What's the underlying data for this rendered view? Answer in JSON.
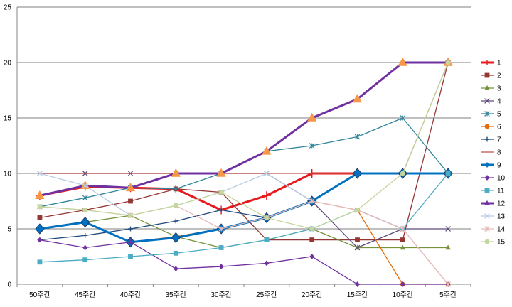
{
  "chart_data": {
    "type": "line",
    "title": "",
    "xlabel": "",
    "ylabel": "",
    "ylim": [
      0,
      25
    ],
    "yticks": [
      0,
      5,
      10,
      15,
      20,
      25
    ],
    "grid": "horizontal",
    "legend_position": "right",
    "categories": [
      "50주간",
      "45주간",
      "40주간",
      "35주간",
      "30주간",
      "25주간",
      "20주간",
      "15주간",
      "10주간",
      "5주간"
    ],
    "series": [
      {
        "name": "1",
        "color": "#e8191c",
        "marker": "plus",
        "width": 3,
        "values": [
          8,
          8.8,
          8.7,
          8.6,
          6.7,
          8,
          10,
          10,
          10,
          10
        ]
      },
      {
        "name": "2",
        "color": "#943634",
        "marker": "square",
        "width": 1.3,
        "values": [
          6,
          6.7,
          7.5,
          8.6,
          8.3,
          4,
          4,
          4,
          4,
          20
        ]
      },
      {
        "name": "3",
        "color": "#76923c",
        "marker": "triangle",
        "width": 1.3,
        "values": [
          5,
          5.6,
          6.2,
          4.3,
          3.3,
          4,
          5,
          3.3,
          3.3,
          3.3
        ]
      },
      {
        "name": "4",
        "color": "#5f497a",
        "marker": "x",
        "width": 1.3,
        "values": [
          10,
          10,
          10,
          10,
          10,
          10,
          7.5,
          3.3,
          5,
          5
        ]
      },
      {
        "name": "5",
        "color": "#31859c",
        "marker": "asterisk",
        "width": 1.3,
        "values": [
          7,
          7.8,
          8.7,
          8.6,
          10,
          12,
          12.5,
          13.3,
          15,
          10
        ]
      },
      {
        "name": "6",
        "color": "#e36c09",
        "marker": "circle",
        "width": 1.3,
        "values": [
          5,
          5.6,
          3.8,
          4.3,
          5,
          6,
          7.5,
          6.7,
          0,
          0
        ]
      },
      {
        "name": "7",
        "color": "#1f497d",
        "marker": "plus",
        "width": 1.3,
        "values": [
          4,
          4.4,
          5,
          5.7,
          6.7,
          6,
          7.5,
          10,
          10,
          10
        ]
      },
      {
        "name": "8",
        "color": "#c0504d",
        "marker": "none",
        "width": 1.3,
        "values": [
          10,
          10,
          10,
          10,
          10,
          10,
          10,
          10,
          10,
          20
        ]
      },
      {
        "name": "9",
        "color": "#0070c0",
        "marker": "diamond",
        "width": 3,
        "values": [
          5,
          5.6,
          3.8,
          4.2,
          5,
          6,
          7.5,
          10,
          10,
          10
        ]
      },
      {
        "name": "10",
        "color": "#7030a0",
        "marker": "diamond",
        "width": 1.3,
        "values": [
          4,
          3.3,
          3.8,
          1.4,
          1.6,
          1.9,
          2.5,
          0,
          0,
          0
        ]
      },
      {
        "name": "11",
        "color": "#4bacc6",
        "marker": "square",
        "width": 1.3,
        "values": [
          2,
          2.2,
          2.5,
          2.8,
          3.3,
          4,
          5,
          6.7,
          5,
          10
        ]
      },
      {
        "name": "12",
        "color": "#7030a0",
        "marker": "triangle",
        "width": 3,
        "values": [
          8,
          8.9,
          8.7,
          10,
          10,
          12,
          15,
          16.7,
          20,
          20
        ]
      },
      {
        "name": "13",
        "color": "#b8cce4",
        "marker": "x",
        "width": 1.3,
        "values": [
          10,
          8.9,
          6.2,
          7.1,
          8.3,
          10,
          7.5,
          6.7,
          5,
          0
        ]
      },
      {
        "name": "14",
        "color": "#e6b9b8",
        "marker": "asterisk",
        "width": 1.3,
        "values": [
          7,
          6.7,
          6.2,
          7.1,
          5,
          6,
          7.5,
          6.7,
          5,
          0
        ]
      },
      {
        "name": "15",
        "color": "#c3d69b",
        "marker": "circle",
        "width": 1.3,
        "values": [
          7,
          6.7,
          6.2,
          7.1,
          8.3,
          6,
          5,
          6.7,
          10,
          20
        ]
      }
    ]
  }
}
